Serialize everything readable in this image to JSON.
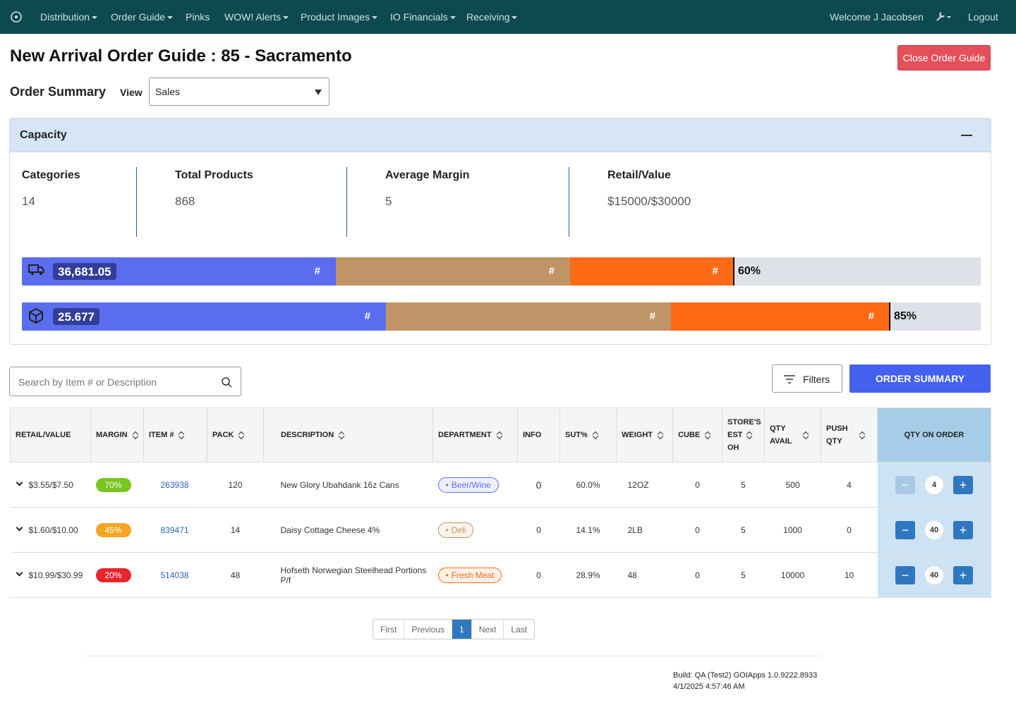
{
  "nav": {
    "items": [
      "Distribution",
      "Order Guide",
      "Pinks",
      "WOW! Alerts",
      "Product Images",
      "IO Financials",
      "Receiving"
    ],
    "welcome": "Welcome J Jacobsen",
    "logout": "Logout"
  },
  "header": {
    "title": "New Arrival Order Guide : 85 - Sacramento",
    "close_button": "Close Order Guide"
  },
  "summary": {
    "label": "Order Summary",
    "view_label": "View",
    "view_value": "Sales"
  },
  "capacity": {
    "title": "Capacity",
    "stats": [
      {
        "label": "Categories",
        "value": 14
      },
      {
        "label": "Total Products",
        "value": 868
      },
      {
        "label": "Average Margin",
        "value": 5
      },
      {
        "label": "Retail/Value",
        "value": "$15000/$30000"
      }
    ],
    "bars": [
      {
        "value": "36,681.05",
        "segments": [
          "#",
          "#",
          "#"
        ],
        "percent": "60%"
      },
      {
        "value": "25.677",
        "segments": [
          "#",
          "#",
          "#"
        ],
        "percent": "85%"
      }
    ]
  },
  "toolbar": {
    "search_placeholder": "Search by Item # or Description",
    "filters": "Filters",
    "order_summary": "ORDER SUMMARY"
  },
  "table": {
    "headers": [
      "RETAIL/VALUE",
      "MARGIN",
      "ITEM #",
      "PACK",
      "DESCRIPTION",
      "DEPARTMENT",
      "INFO",
      "SUT%",
      "WEIGHT",
      "CUBE",
      "STORE'S EST OH",
      "QTY AVAIL",
      "PUSH QTY",
      "QTY ON ORDER"
    ],
    "rows": [
      [
        "$3.55/$7.50",
        "70%",
        263938,
        120,
        "New Glory Ubahdank 16z Cans",
        "Beer/Wine",
        0,
        "60.0%",
        "12OZ",
        0,
        5,
        500,
        4,
        4
      ],
      [
        "$1.60/$10.00",
        "45%",
        839471,
        14,
        "Daisy Cottage Cheese 4%",
        "Deli",
        0,
        "14.1%",
        "2LB",
        0,
        5,
        1000,
        0,
        40
      ],
      [
        "$10.99/$30.99",
        "20%",
        514038,
        48,
        "Hofseth Norwegian Steelhead Portions P/f",
        "Fresh Meat",
        0,
        "28.9%",
        48,
        0,
        5,
        10000,
        10,
        40
      ]
    ]
  },
  "pagination": [
    "First",
    "Previous",
    "1",
    "Next",
    "Last"
  ],
  "footer": {
    "build": "Build: QA (Test2) GOIApps 1.0.9222.8933",
    "timestamp": "4/1/2025 4:57:46 AM"
  }
}
